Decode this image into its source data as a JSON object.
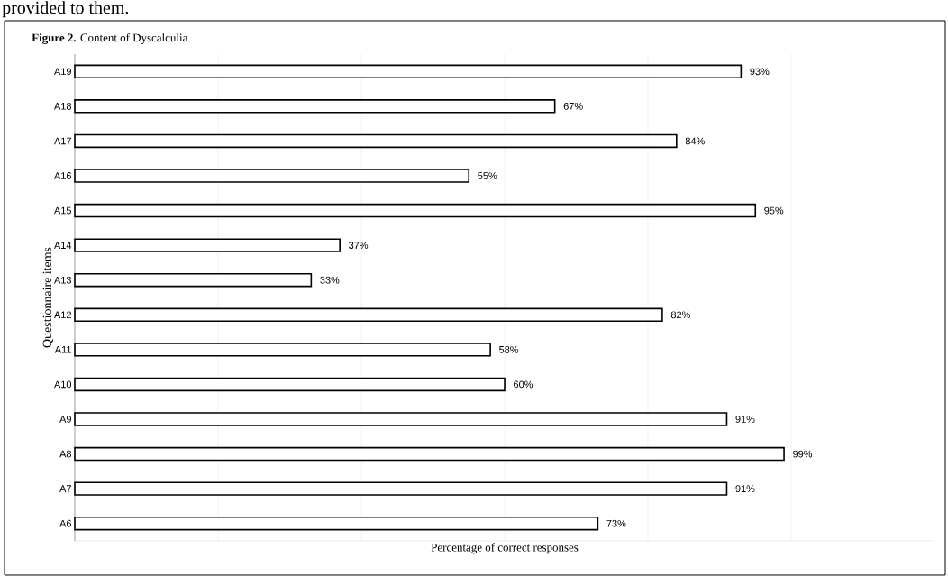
{
  "chart_data": {
    "type": "bar",
    "orientation": "horizontal",
    "title": "**Figure 2.** Content of Dyscalculia",
    "xlabel": "Percentage of correct responses",
    "ylabel": "Questionnaire items",
    "annotations": [
      "provided to them."
    ],
    "categories": [
      "A19",
      "A18",
      "A17",
      "A16",
      "A15",
      "A14",
      "A13",
      "A12",
      "A11",
      "A10",
      "A9",
      "A8",
      "A7",
      "A6"
    ],
    "values": [
      93,
      67,
      84,
      55,
      95,
      37,
      33,
      82,
      58,
      60,
      91,
      99,
      91,
      73
    ],
    "value_labels": [
      "93%",
      "67%",
      "84%",
      "55%",
      "95%",
      "37%",
      "33%",
      "82%",
      "58%",
      "60%",
      "91%",
      "99%",
      "91%",
      "73%"
    ],
    "color": "#ffffff",
    "xlim": [
      0,
      120
    ],
    "xticks": [
      {
        "value": 20,
        "label": null
      },
      {
        "value": 40,
        "label": null
      },
      {
        "value": 60,
        "label": null
      },
      {
        "value": 80,
        "label": null
      },
      {
        "value": 100,
        "label": null
      }
    ],
    "grid": "x",
    "tick_labels": "y"
  }
}
